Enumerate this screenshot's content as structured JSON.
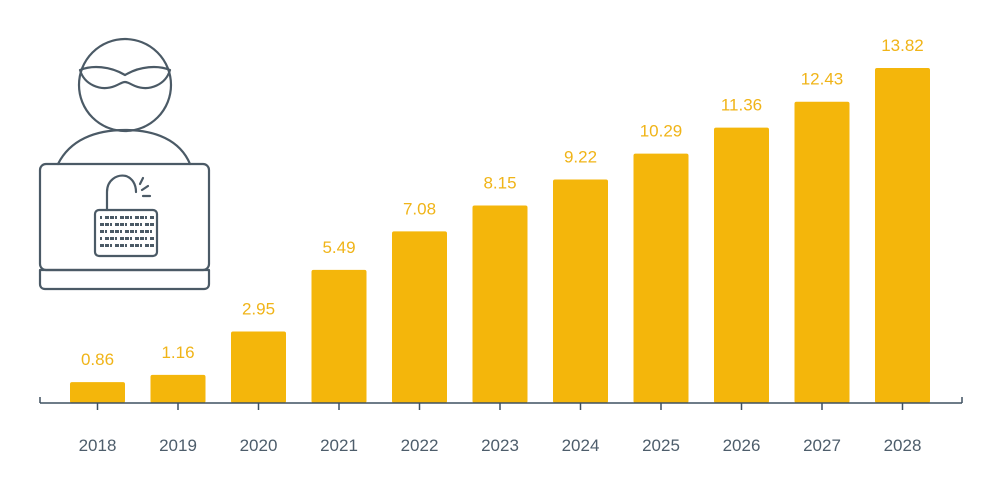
{
  "colors": {
    "bar": "#f4b60b",
    "value_label": "#f0b418",
    "axis": "#3f5060",
    "tick_label": "#4d5d6b",
    "illustration": "#4b5a66"
  },
  "illustration": {
    "icon": "hacker-laptop-icon"
  },
  "chart_data": {
    "type": "bar",
    "title": "",
    "xlabel": "",
    "ylabel": "",
    "categories": [
      "2018",
      "2019",
      "2020",
      "2021",
      "2022",
      "2023",
      "2024",
      "2025",
      "2026",
      "2027",
      "2028"
    ],
    "values": [
      0.86,
      1.16,
      2.95,
      5.49,
      7.08,
      8.15,
      9.22,
      10.29,
      11.36,
      12.43,
      13.82
    ],
    "value_labels": [
      "0.86",
      "1.16",
      "2.95",
      "5.49",
      "7.08",
      "8.15",
      "9.22",
      "10.29",
      "11.36",
      "12.43",
      "13.82"
    ],
    "ylim": [
      0,
      13.82
    ],
    "grid": false,
    "legend": "none"
  }
}
